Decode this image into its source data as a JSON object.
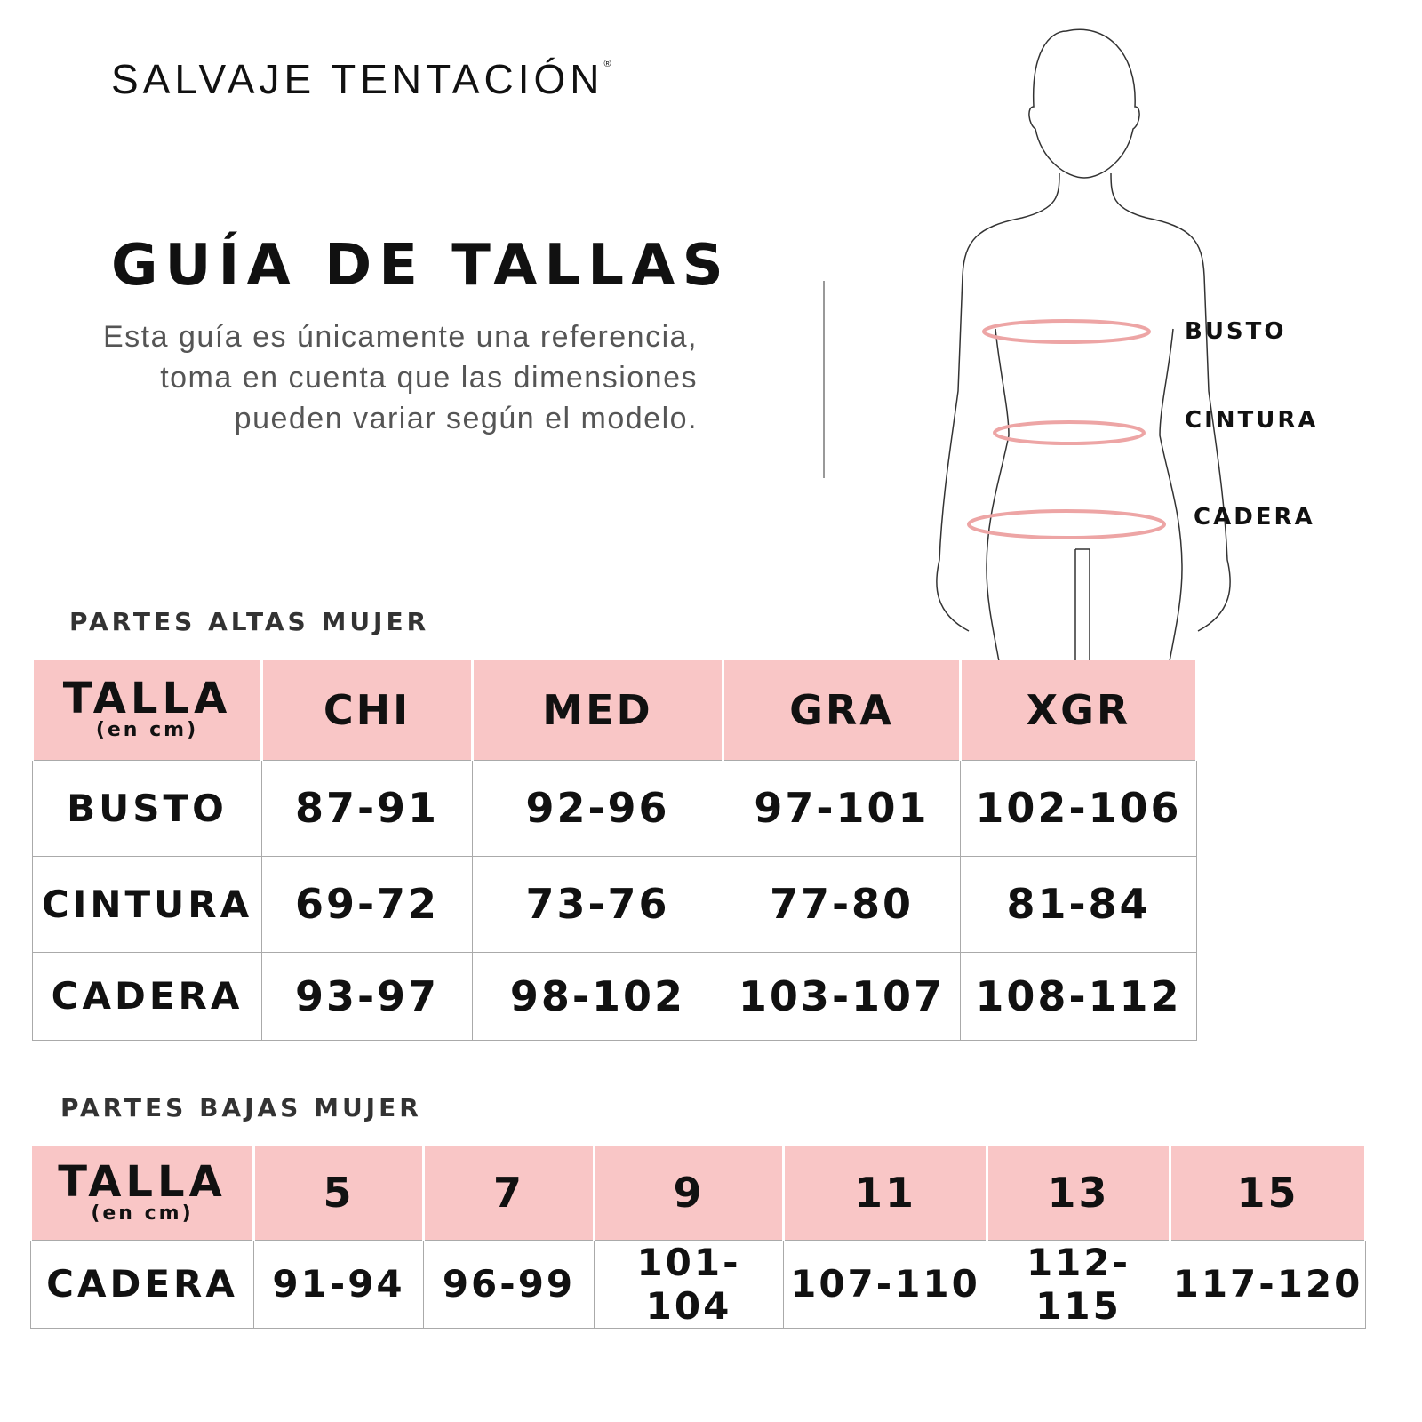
{
  "brand": {
    "name": "SALVAJE TENTACIÓN",
    "mark": "®"
  },
  "title": "GUÍA DE TALLAS",
  "description": "Esta guía es únicamente una referencia, toma en cuenta que las dimensiones pueden variar según el modelo.",
  "figure": {
    "labels": [
      "BUSTO",
      "CINTURA",
      "CADERA"
    ],
    "measure_color": "#eda5a5"
  },
  "colors": {
    "header_bg": "#f9c6c6"
  },
  "tops": {
    "section": "PARTES ALTAS MUJER",
    "header": {
      "talla": "TALLA",
      "unit": "(en cm)",
      "sizes": [
        "CHI",
        "MED",
        "GRA",
        "XGR"
      ]
    },
    "rows": [
      {
        "label": "BUSTO",
        "values": [
          "87-91",
          "92-96",
          "97-101",
          "102-106"
        ]
      },
      {
        "label": "CINTURA",
        "values": [
          "69-72",
          "73-76",
          "77-80",
          "81-84"
        ]
      },
      {
        "label": "CADERA",
        "values": [
          "93-97",
          "98-102",
          "103-107",
          "108-112"
        ]
      }
    ]
  },
  "bottoms": {
    "section": "PARTES BAJAS MUJER",
    "header": {
      "talla": "TALLA",
      "unit": "(en cm)",
      "sizes": [
        "5",
        "7",
        "9",
        "11",
        "13",
        "15"
      ]
    },
    "rows": [
      {
        "label": "CADERA",
        "values": [
          "91-94",
          "96-99",
          "101-104",
          "107-110",
          "112-115",
          "117-120"
        ]
      }
    ]
  }
}
